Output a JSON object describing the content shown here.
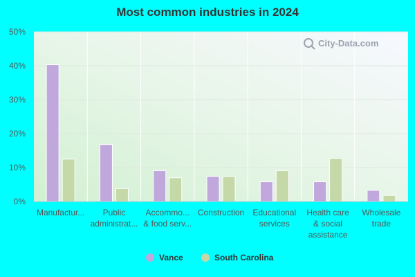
{
  "chart_data": {
    "type": "bar",
    "title": "Most common industries in 2024",
    "xlabel": "",
    "ylabel": "",
    "ylim": [
      0,
      50
    ],
    "yticks": [
      "0%",
      "10%",
      "20%",
      "30%",
      "40%",
      "50%"
    ],
    "categories": [
      [
        "Manufactur..."
      ],
      [
        "Public",
        "administrat..."
      ],
      [
        "Accommo...",
        "& food serv..."
      ],
      [
        "Construction"
      ],
      [
        "Educational",
        "services"
      ],
      [
        "Health care",
        "& social",
        "assistance"
      ],
      [
        "Wholesale",
        "trade"
      ]
    ],
    "series": [
      {
        "name": "Vance",
        "color": "#c0a8dc",
        "values": [
          40.3,
          16.8,
          9.1,
          7.4,
          5.8,
          5.8,
          3.3
        ]
      },
      {
        "name": "South Carolina",
        "color": "#c4d8a8",
        "values": [
          12.5,
          3.8,
          7.0,
          7.4,
          9.1,
          12.7,
          1.8
        ]
      }
    ],
    "grid": true,
    "legend_position": "bottom"
  },
  "watermark": {
    "text": "City-Data.com",
    "icon": "magnifier-icon"
  }
}
